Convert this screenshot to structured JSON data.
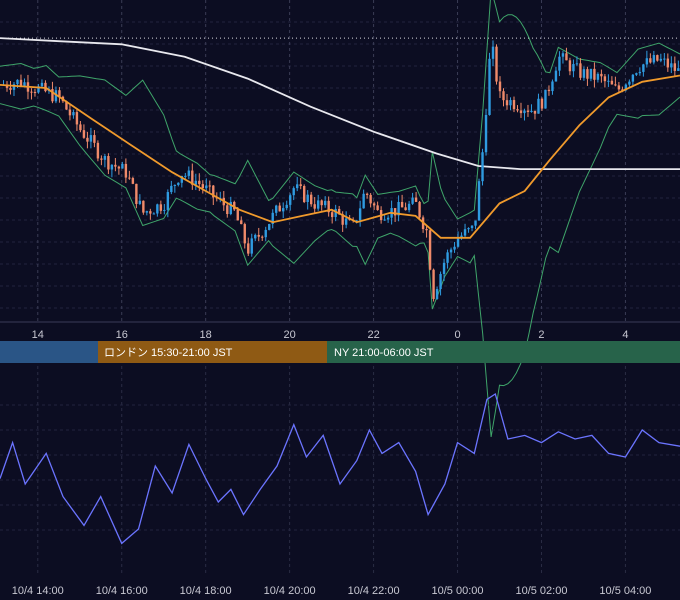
{
  "colors": {
    "background": "#0c0d22",
    "grid": "#22243e",
    "candle_up": "#2f9be0",
    "candle_down": "#f08a6a",
    "ma_fast": "#f09a2c",
    "ma_slow": "#e8e8ee",
    "bollinger": "#3fa56a",
    "oscillator": "#6b74ff",
    "session_tokyo": "#2a5586",
    "session_london": "#8f5a14",
    "session_ny": "#27634a"
  },
  "sessions": [
    {
      "name": "tokyo",
      "label": ""
    },
    {
      "name": "london",
      "label": "ロンドン 15:30-21:00 JST"
    },
    {
      "name": "ny",
      "label": "NY 21:00-06:00 JST"
    }
  ],
  "chart_data": [
    {
      "type": "candlestick",
      "title": "",
      "x_tick_labels": [
        "14",
        "16",
        "18",
        "20",
        "22",
        "0",
        "2",
        "4"
      ],
      "x_range_hours": [
        13.1,
        29.3
      ],
      "y_label": "",
      "grid": true,
      "overlays": [
        "moving average (orange)",
        "long moving average (white)",
        "Bollinger bands (green)",
        "reference level (dotted white)"
      ],
      "close_profile": [
        {
          "x": 13.1,
          "y": 0.76
        },
        {
          "x": 13.6,
          "y": 0.77
        },
        {
          "x": 14.5,
          "y": 0.72
        },
        {
          "x": 15.0,
          "y": 0.62
        },
        {
          "x": 15.6,
          "y": 0.52
        },
        {
          "x": 16.1,
          "y": 0.48
        },
        {
          "x": 16.5,
          "y": 0.35
        },
        {
          "x": 17.0,
          "y": 0.38
        },
        {
          "x": 17.4,
          "y": 0.48
        },
        {
          "x": 17.8,
          "y": 0.45
        },
        {
          "x": 18.2,
          "y": 0.4
        },
        {
          "x": 18.7,
          "y": 0.35
        },
        {
          "x": 19.0,
          "y": 0.23
        },
        {
          "x": 19.5,
          "y": 0.32
        },
        {
          "x": 20.1,
          "y": 0.43
        },
        {
          "x": 20.6,
          "y": 0.38
        },
        {
          "x": 21.1,
          "y": 0.35
        },
        {
          "x": 21.5,
          "y": 0.3
        },
        {
          "x": 21.8,
          "y": 0.42
        },
        {
          "x": 22.1,
          "y": 0.35
        },
        {
          "x": 22.6,
          "y": 0.36
        },
        {
          "x": 23.0,
          "y": 0.38
        },
        {
          "x": 23.3,
          "y": 0.28
        },
        {
          "x": 23.4,
          "y": 0.08
        },
        {
          "x": 23.7,
          "y": 0.2
        },
        {
          "x": 24.0,
          "y": 0.27
        },
        {
          "x": 24.4,
          "y": 0.3
        },
        {
          "x": 24.6,
          "y": 0.55
        },
        {
          "x": 24.8,
          "y": 0.9
        },
        {
          "x": 25.0,
          "y": 0.72
        },
        {
          "x": 25.4,
          "y": 0.7
        },
        {
          "x": 25.8,
          "y": 0.68
        },
        {
          "x": 26.1,
          "y": 0.72
        },
        {
          "x": 26.4,
          "y": 0.85
        },
        {
          "x": 26.9,
          "y": 0.8
        },
        {
          "x": 27.4,
          "y": 0.78
        },
        {
          "x": 27.8,
          "y": 0.74
        },
        {
          "x": 28.3,
          "y": 0.82
        },
        {
          "x": 28.8,
          "y": 0.84
        },
        {
          "x": 29.3,
          "y": 0.8
        }
      ],
      "series": [
        {
          "values": [
            {
              "x": 13.1,
              "y": 0.76
            },
            {
              "x": 14.2,
              "y": 0.75
            },
            {
              "x": 15.3,
              "y": 0.65
            },
            {
              "x": 16.3,
              "y": 0.56
            },
            {
              "x": 17.2,
              "y": 0.48
            },
            {
              "x": 18.0,
              "y": 0.42
            },
            {
              "x": 18.8,
              "y": 0.36
            },
            {
              "x": 19.6,
              "y": 0.32
            },
            {
              "x": 20.3,
              "y": 0.34
            },
            {
              "x": 21.0,
              "y": 0.36
            },
            {
              "x": 21.6,
              "y": 0.32
            },
            {
              "x": 22.4,
              "y": 0.35
            },
            {
              "x": 23.0,
              "y": 0.34
            },
            {
              "x": 23.6,
              "y": 0.27
            },
            {
              "x": 24.3,
              "y": 0.27
            },
            {
              "x": 25.0,
              "y": 0.38
            },
            {
              "x": 25.6,
              "y": 0.42
            },
            {
              "x": 26.2,
              "y": 0.52
            },
            {
              "x": 26.9,
              "y": 0.63
            },
            {
              "x": 27.6,
              "y": 0.72
            },
            {
              "x": 28.4,
              "y": 0.77
            },
            {
              "x": 29.3,
              "y": 0.79
            }
          ]
        },
        {
          "values": [
            {
              "x": 13.1,
              "y": 0.91
            },
            {
              "x": 14.5,
              "y": 0.9
            },
            {
              "x": 16.0,
              "y": 0.89
            },
            {
              "x": 17.5,
              "y": 0.85
            },
            {
              "x": 19.0,
              "y": 0.78
            },
            {
              "x": 20.5,
              "y": 0.69
            },
            {
              "x": 22.0,
              "y": 0.61
            },
            {
              "x": 23.5,
              "y": 0.54
            },
            {
              "x": 24.5,
              "y": 0.5
            },
            {
              "x": 25.5,
              "y": 0.49
            },
            {
              "x": 27.0,
              "y": 0.49
            },
            {
              "x": 29.3,
              "y": 0.49
            }
          ]
        }
      ],
      "reference_level": 0.91
    },
    {
      "type": "line",
      "title": "",
      "x_tick_labels": [
        "10/4 14:00",
        "10/4 16:00",
        "10/4 18:00",
        "10/4 20:00",
        "10/4 22:00",
        "10/5 00:00",
        "10/5 02:00",
        "10/5 04:00"
      ],
      "x_range_hours": [
        13.1,
        29.3
      ],
      "grid": true,
      "series": [
        {
          "values": [
            {
              "x": 13.1,
              "y": 0.48
            },
            {
              "x": 13.4,
              "y": 0.68
            },
            {
              "x": 13.7,
              "y": 0.45
            },
            {
              "x": 14.2,
              "y": 0.62
            },
            {
              "x": 14.6,
              "y": 0.38
            },
            {
              "x": 15.1,
              "y": 0.22
            },
            {
              "x": 15.5,
              "y": 0.38
            },
            {
              "x": 16.0,
              "y": 0.12
            },
            {
              "x": 16.4,
              "y": 0.2
            },
            {
              "x": 16.8,
              "y": 0.55
            },
            {
              "x": 17.2,
              "y": 0.4
            },
            {
              "x": 17.6,
              "y": 0.67
            },
            {
              "x": 18.0,
              "y": 0.48
            },
            {
              "x": 18.3,
              "y": 0.35
            },
            {
              "x": 18.6,
              "y": 0.42
            },
            {
              "x": 18.9,
              "y": 0.28
            },
            {
              "x": 19.3,
              "y": 0.42
            },
            {
              "x": 19.7,
              "y": 0.55
            },
            {
              "x": 20.1,
              "y": 0.78
            },
            {
              "x": 20.4,
              "y": 0.6
            },
            {
              "x": 20.8,
              "y": 0.72
            },
            {
              "x": 21.2,
              "y": 0.45
            },
            {
              "x": 21.6,
              "y": 0.58
            },
            {
              "x": 21.9,
              "y": 0.75
            },
            {
              "x": 22.2,
              "y": 0.62
            },
            {
              "x": 22.6,
              "y": 0.68
            },
            {
              "x": 23.0,
              "y": 0.52
            },
            {
              "x": 23.3,
              "y": 0.28
            },
            {
              "x": 23.7,
              "y": 0.45
            },
            {
              "x": 24.0,
              "y": 0.68
            },
            {
              "x": 24.4,
              "y": 0.62
            },
            {
              "x": 24.7,
              "y": 0.92
            },
            {
              "x": 24.9,
              "y": 0.95
            },
            {
              "x": 25.2,
              "y": 0.7
            },
            {
              "x": 25.6,
              "y": 0.72
            },
            {
              "x": 26.0,
              "y": 0.68
            },
            {
              "x": 26.4,
              "y": 0.74
            },
            {
              "x": 26.8,
              "y": 0.7
            },
            {
              "x": 27.2,
              "y": 0.72
            },
            {
              "x": 27.6,
              "y": 0.62
            },
            {
              "x": 28.0,
              "y": 0.6
            },
            {
              "x": 28.4,
              "y": 0.75
            },
            {
              "x": 28.8,
              "y": 0.68
            },
            {
              "x": 29.3,
              "y": 0.66
            }
          ]
        }
      ]
    }
  ]
}
